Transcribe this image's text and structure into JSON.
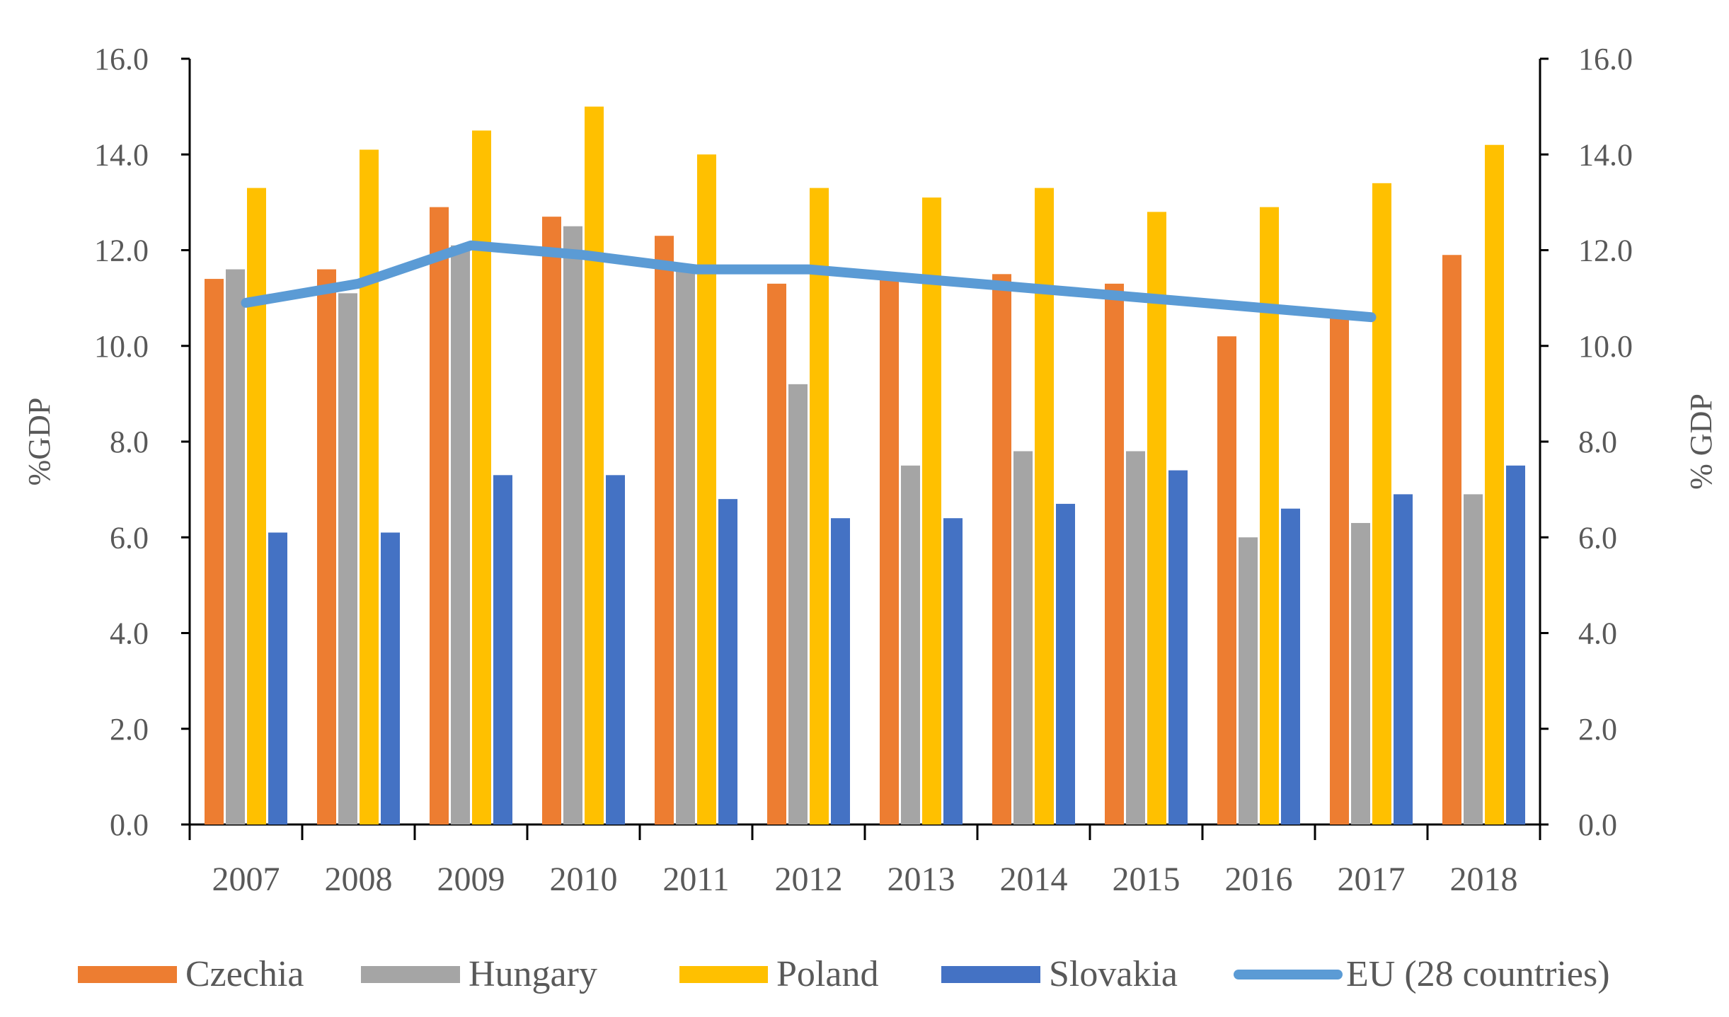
{
  "chart_data": {
    "type": "bar",
    "title": "",
    "categories": [
      "2007",
      "2008",
      "2009",
      "2010",
      "2011",
      "2012",
      "2013",
      "2014",
      "2015",
      "2016",
      "2017",
      "2018"
    ],
    "series": [
      {
        "name": "Czechia",
        "kind": "bar",
        "color": "#ED7D31",
        "values": [
          11.4,
          11.6,
          12.9,
          12.7,
          12.3,
          11.3,
          11.4,
          11.5,
          11.3,
          10.2,
          10.6,
          11.9
        ]
      },
      {
        "name": "Hungary",
        "kind": "bar",
        "color": "#A5A5A5",
        "values": [
          11.6,
          11.1,
          12.1,
          12.5,
          11.7,
          9.2,
          7.5,
          7.8,
          7.8,
          6.0,
          6.3,
          6.9
        ]
      },
      {
        "name": "Poland",
        "kind": "bar",
        "color": "#FFC000",
        "values": [
          13.3,
          14.1,
          14.5,
          15.0,
          14.0,
          13.3,
          13.1,
          13.3,
          12.8,
          12.9,
          13.4,
          14.2
        ]
      },
      {
        "name": "Slovakia",
        "kind": "bar",
        "color": "#4472C4",
        "values": [
          6.1,
          6.1,
          7.3,
          7.3,
          6.8,
          6.4,
          6.4,
          6.7,
          7.4,
          6.6,
          6.9,
          7.5
        ]
      },
      {
        "name": "EU (28 countries)",
        "kind": "line",
        "color": "#5B9BD5",
        "values": [
          10.9,
          11.3,
          12.1,
          11.9,
          11.6,
          11.6,
          11.4,
          11.2,
          11.0,
          10.8,
          10.6,
          null
        ]
      }
    ],
    "ylabel": "%GDP",
    "ylabel_right": "% GDP",
    "ylim": [
      0,
      16
    ],
    "yticks": [
      "0.0",
      "2.0",
      "4.0",
      "6.0",
      "8.0",
      "10.0",
      "12.0",
      "14.0",
      "16.0"
    ],
    "grid": false,
    "legend": "bottom"
  }
}
